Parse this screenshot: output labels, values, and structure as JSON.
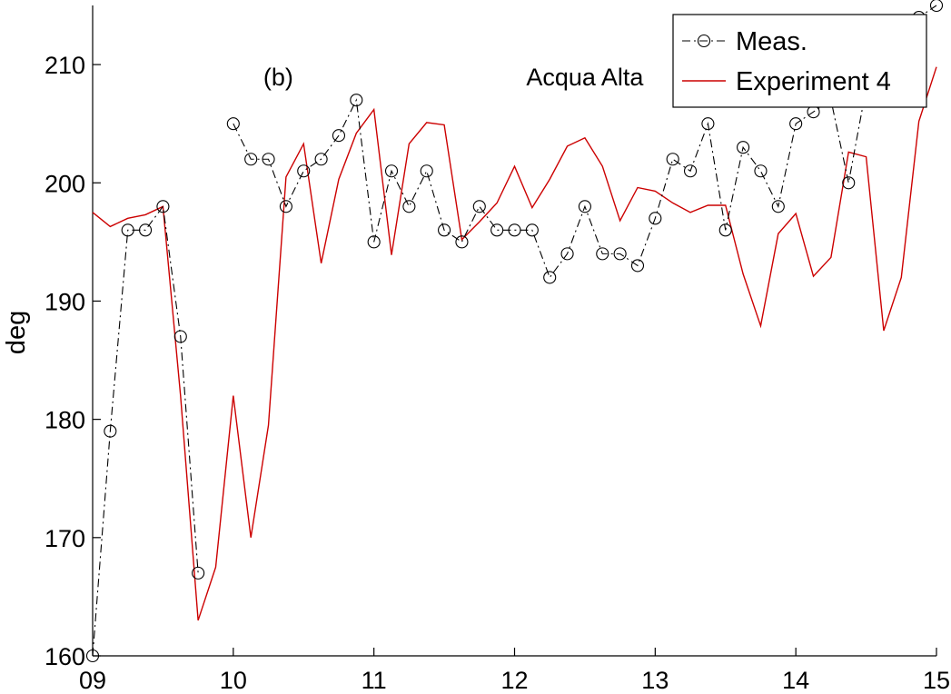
{
  "chart_data": {
    "type": "line",
    "title": "",
    "xlabel": "",
    "ylabel": "deg",
    "xlim": [
      9,
      15
    ],
    "ylim": [
      160,
      215
    ],
    "x_tick_values": [
      9,
      10,
      11,
      12,
      13,
      14,
      15
    ],
    "x_tick_labels": [
      "09",
      "10",
      "11",
      "12",
      "13",
      "14",
      "15"
    ],
    "y_ticks": [
      160,
      170,
      180,
      190,
      200,
      210
    ],
    "grid": false,
    "legend_position": "top-right",
    "annotations": [
      {
        "text": "(b)",
        "x": 10.32,
        "y": 209
      },
      {
        "text": "Acqua Alta",
        "x": 12.5,
        "y": 209
      }
    ],
    "colors": {
      "meas": "#000000",
      "experiment": "#cc0000"
    },
    "series": [
      {
        "name": "Meas.",
        "style": "dash-dot with circle markers",
        "segments": [
          [
            {
              "x": 9.0,
              "y": 160
            },
            {
              "x": 9.125,
              "y": 179
            },
            {
              "x": 9.25,
              "y": 196
            },
            {
              "x": 9.375,
              "y": 196
            },
            {
              "x": 9.5,
              "y": 198
            },
            {
              "x": 9.625,
              "y": 187
            },
            {
              "x": 9.75,
              "y": 167
            }
          ],
          [
            {
              "x": 10.0,
              "y": 205
            },
            {
              "x": 10.125,
              "y": 202
            },
            {
              "x": 10.25,
              "y": 202
            },
            {
              "x": 10.375,
              "y": 198
            },
            {
              "x": 10.5,
              "y": 201
            },
            {
              "x": 10.625,
              "y": 202
            },
            {
              "x": 10.75,
              "y": 204
            },
            {
              "x": 10.875,
              "y": 207
            },
            {
              "x": 11.0,
              "y": 195
            },
            {
              "x": 11.125,
              "y": 201
            },
            {
              "x": 11.25,
              "y": 198
            },
            {
              "x": 11.375,
              "y": 201
            },
            {
              "x": 11.5,
              "y": 196
            },
            {
              "x": 11.625,
              "y": 195
            },
            {
              "x": 11.75,
              "y": 198
            },
            {
              "x": 11.875,
              "y": 196
            },
            {
              "x": 12.0,
              "y": 196
            },
            {
              "x": 12.125,
              "y": 196
            },
            {
              "x": 12.25,
              "y": 192
            },
            {
              "x": 12.375,
              "y": 194
            },
            {
              "x": 12.5,
              "y": 198
            },
            {
              "x": 12.625,
              "y": 194
            },
            {
              "x": 12.75,
              "y": 194
            },
            {
              "x": 12.875,
              "y": 193
            },
            {
              "x": 13.0,
              "y": 197
            },
            {
              "x": 13.125,
              "y": 202
            },
            {
              "x": 13.25,
              "y": 201
            },
            {
              "x": 13.375,
              "y": 205
            },
            {
              "x": 13.5,
              "y": 196
            },
            {
              "x": 13.625,
              "y": 203
            },
            {
              "x": 13.75,
              "y": 201
            },
            {
              "x": 13.875,
              "y": 198
            },
            {
              "x": 14.0,
              "y": 205
            },
            {
              "x": 14.125,
              "y": 206
            },
            {
              "x": 14.25,
              "y": 207
            },
            {
              "x": 14.375,
              "y": 200
            },
            {
              "x": 14.5,
              "y": 208
            },
            {
              "x": 14.625,
              "y": 210
            },
            {
              "x": 14.75,
              "y": 212
            },
            {
              "x": 14.875,
              "y": 214
            },
            {
              "x": 15.0,
              "y": 215
            }
          ]
        ]
      },
      {
        "name": "Experiment 4",
        "style": "solid",
        "points": [
          {
            "x": 9.0,
            "y": 197.5
          },
          {
            "x": 9.125,
            "y": 196.3
          },
          {
            "x": 9.25,
            "y": 197.0
          },
          {
            "x": 9.375,
            "y": 197.3
          },
          {
            "x": 9.5,
            "y": 198.0
          },
          {
            "x": 9.625,
            "y": 182.0
          },
          {
            "x": 9.75,
            "y": 163.0
          },
          {
            "x": 9.875,
            "y": 167.5
          },
          {
            "x": 10.0,
            "y": 182.0
          },
          {
            "x": 10.125,
            "y": 170.0
          },
          {
            "x": 10.25,
            "y": 179.5
          },
          {
            "x": 10.375,
            "y": 200.5
          },
          {
            "x": 10.5,
            "y": 203.3
          },
          {
            "x": 10.625,
            "y": 193.2
          },
          {
            "x": 10.75,
            "y": 200.3
          },
          {
            "x": 10.875,
            "y": 204.2
          },
          {
            "x": 11.0,
            "y": 206.2
          },
          {
            "x": 11.125,
            "y": 193.9
          },
          {
            "x": 11.25,
            "y": 203.3
          },
          {
            "x": 11.375,
            "y": 205.1
          },
          {
            "x": 11.5,
            "y": 204.9
          },
          {
            "x": 11.625,
            "y": 195.2
          },
          {
            "x": 11.75,
            "y": 196.7
          },
          {
            "x": 11.875,
            "y": 198.3
          },
          {
            "x": 12.0,
            "y": 201.4
          },
          {
            "x": 12.125,
            "y": 197.9
          },
          {
            "x": 12.25,
            "y": 200.3
          },
          {
            "x": 12.375,
            "y": 203.1
          },
          {
            "x": 12.5,
            "y": 203.8
          },
          {
            "x": 12.625,
            "y": 201.4
          },
          {
            "x": 12.75,
            "y": 196.8
          },
          {
            "x": 12.875,
            "y": 199.6
          },
          {
            "x": 13.0,
            "y": 199.3
          },
          {
            "x": 13.125,
            "y": 198.3
          },
          {
            "x": 13.25,
            "y": 197.5
          },
          {
            "x": 13.375,
            "y": 198.1
          },
          {
            "x": 13.5,
            "y": 198.1
          },
          {
            "x": 13.625,
            "y": 192.3
          },
          {
            "x": 13.75,
            "y": 187.9
          },
          {
            "x": 13.875,
            "y": 195.7
          },
          {
            "x": 14.0,
            "y": 197.4
          },
          {
            "x": 14.125,
            "y": 192.1
          },
          {
            "x": 14.25,
            "y": 193.7
          },
          {
            "x": 14.375,
            "y": 202.6
          },
          {
            "x": 14.5,
            "y": 202.2
          },
          {
            "x": 14.625,
            "y": 187.5
          },
          {
            "x": 14.75,
            "y": 192.0
          },
          {
            "x": 14.875,
            "y": 205.2
          },
          {
            "x": 15.0,
            "y": 209.8
          }
        ]
      }
    ]
  }
}
